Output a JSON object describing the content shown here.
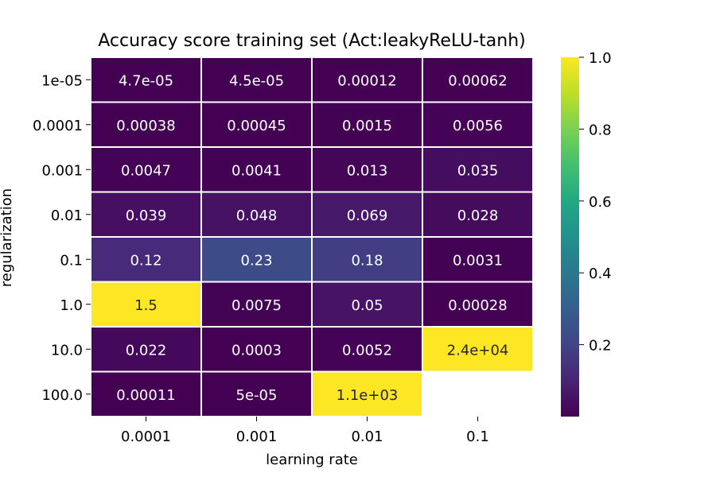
{
  "chart_data": {
    "type": "heatmap",
    "title": "Accuracy score training set (Act:leakyReLU-tanh)",
    "xlabel": "learning rate",
    "ylabel": "regularization",
    "x_ticks": [
      "0.0001",
      "0.001",
      "0.01",
      "0.1"
    ],
    "y_ticks": [
      "1e-05",
      "0.0001",
      "0.001",
      "0.01",
      "0.1",
      "1.0",
      "10.0",
      "100.0"
    ],
    "values": [
      [
        4.7e-05,
        4.5e-05,
        0.00012,
        0.00062
      ],
      [
        0.00038,
        0.00045,
        0.0015,
        0.0056
      ],
      [
        0.0047,
        0.0041,
        0.013,
        0.035
      ],
      [
        0.039,
        0.048,
        0.069,
        0.028
      ],
      [
        0.12,
        0.23,
        0.18,
        0.0031
      ],
      [
        1.5,
        0.0075,
        0.05,
        0.00028
      ],
      [
        0.022,
        0.0003,
        0.0052,
        24000
      ],
      [
        0.00011,
        5e-05,
        1100,
        null
      ]
    ],
    "annotations": [
      [
        "4.7e-05",
        "4.5e-05",
        "0.00012",
        "0.00062"
      ],
      [
        "0.00038",
        "0.00045",
        "0.0015",
        "0.0056"
      ],
      [
        "0.0047",
        "0.0041",
        "0.013",
        "0.035"
      ],
      [
        "0.039",
        "0.048",
        "0.069",
        "0.028"
      ],
      [
        "0.12",
        "0.23",
        "0.18",
        "0.0031"
      ],
      [
        "1.5",
        "0.0075",
        "0.05",
        "0.00028"
      ],
      [
        "0.022",
        "0.0003",
        "0.0052",
        "2.4e+04"
      ],
      [
        "0.00011",
        "5e-05",
        "1.1e+03",
        ""
      ]
    ],
    "colormap": "viridis",
    "vmin": 0,
    "vmax": 1,
    "colorbar_ticks": [
      "0.2",
      "0.4",
      "0.6",
      "0.8",
      "1.0"
    ],
    "colorbar_tick_values": [
      0.2,
      0.4,
      0.6,
      0.8,
      1.0
    ],
    "dark_text_color": "#262626",
    "light_text_color": "#ffffff"
  }
}
